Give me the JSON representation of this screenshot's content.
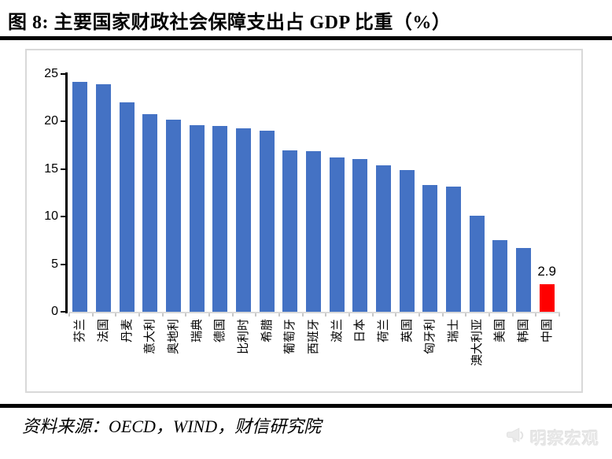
{
  "page": {
    "title": "图 8:  主要国家财政社会保障支出占 GDP 比重（%）",
    "footer": "资料来源：OECD，WIND，财信研究院",
    "watermark": "明察宏观"
  },
  "colors": {
    "bar": "#4472c4",
    "highlight_bar": "#ff0000",
    "axis_black": "#000000",
    "axis_gray": "#d9d9d9",
    "panel_border": "#d9d9d9",
    "watermark_gray": "#e7e7e7"
  },
  "chart_data": {
    "type": "bar",
    "title": "图 8: 主要国家财政社会保障支出占 GDP 比重（%）",
    "xlabel": "",
    "ylabel": "",
    "ylim": [
      0,
      25
    ],
    "yticks": [
      0,
      5,
      10,
      15,
      20,
      25
    ],
    "grid": false,
    "legend": null,
    "categories": [
      "芬兰",
      "法国",
      "丹麦",
      "意大利",
      "奥地利",
      "瑞典",
      "德国",
      "比利时",
      "希腊",
      "葡萄牙",
      "西班牙",
      "波兰",
      "日本",
      "荷兰",
      "英国",
      "匈牙利",
      "瑞士",
      "澳大利亚",
      "美国",
      "韩国",
      "中国"
    ],
    "values": [
      24.2,
      23.9,
      22.0,
      20.8,
      20.2,
      19.6,
      19.5,
      19.3,
      19.0,
      17.0,
      16.9,
      16.2,
      16.1,
      15.4,
      14.9,
      13.3,
      13.2,
      10.1,
      7.5,
      6.7,
      2.9
    ],
    "highlight_index": 20,
    "annotations": [
      {
        "category": "中国",
        "text": "2.9"
      }
    ]
  }
}
